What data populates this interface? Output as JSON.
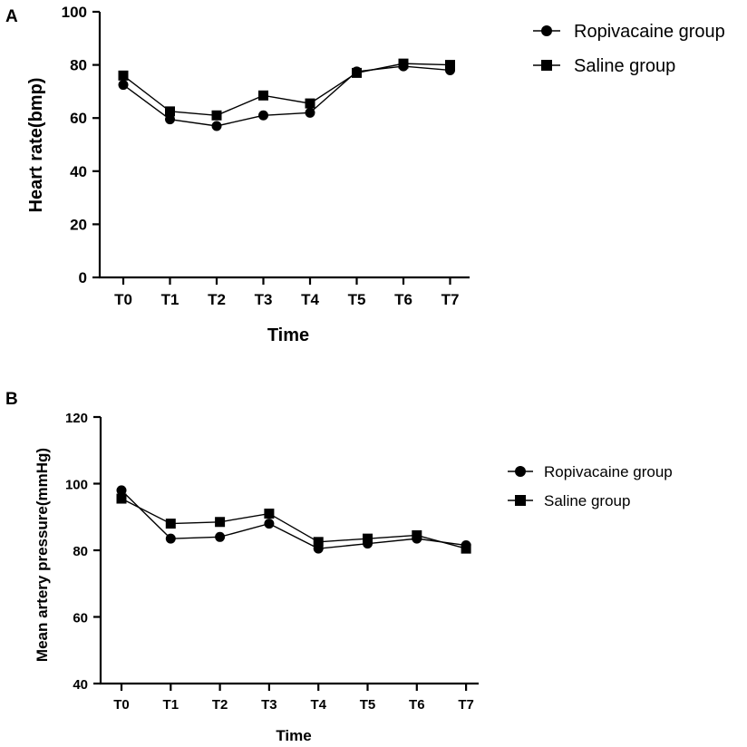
{
  "chart_data": [
    {
      "panel": "A",
      "type": "line",
      "title": "",
      "xlabel": "Time",
      "ylabel": "Heart rate(bmp)",
      "categories": [
        "T0",
        "T1",
        "T2",
        "T3",
        "T4",
        "T5",
        "T6",
        "T7"
      ],
      "ylim": [
        0,
        100
      ],
      "yticks": [
        0,
        20,
        40,
        60,
        80,
        100
      ],
      "legend_position": "top-right",
      "series": [
        {
          "name": "Ropivacaine group",
          "marker": "circle",
          "values": [
            72.5,
            59.5,
            57,
            61,
            62,
            77.5,
            79.5,
            78
          ]
        },
        {
          "name": "Saline group",
          "marker": "square",
          "values": [
            76,
            62.5,
            61,
            68.5,
            65.5,
            77,
            80.5,
            80
          ]
        }
      ]
    },
    {
      "panel": "B",
      "type": "line",
      "title": "",
      "xlabel": "Time",
      "ylabel": "Mean artery pressure(mmHg)",
      "categories": [
        "T0",
        "T1",
        "T2",
        "T3",
        "T4",
        "T5",
        "T6",
        "T7"
      ],
      "ylim": [
        40,
        120
      ],
      "yticks": [
        40,
        60,
        80,
        100,
        120
      ],
      "legend_position": "right",
      "series": [
        {
          "name": "Ropivacaine group",
          "marker": "circle",
          "values": [
            98,
            83.5,
            84,
            88,
            80.5,
            82,
            83.5,
            81.5
          ]
        },
        {
          "name": "Saline group",
          "marker": "square",
          "values": [
            95.5,
            88,
            88.5,
            91,
            82.5,
            83.5,
            84.5,
            80.5
          ]
        }
      ]
    }
  ]
}
